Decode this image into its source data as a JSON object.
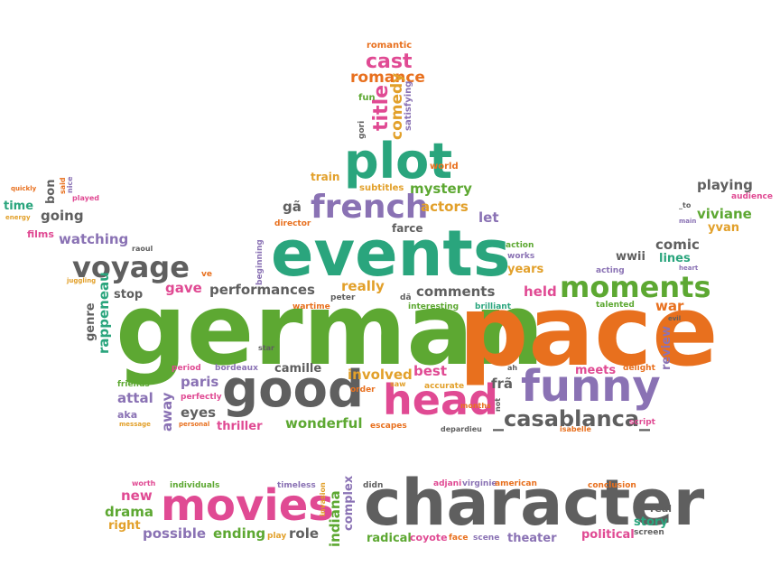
{
  "palette": {
    "green": "#5da832",
    "orange": "#e8701e",
    "gray": "#5f5f5f",
    "purple": "#8a72b4",
    "magenta": "#e04a93",
    "teal": "#2aa57d",
    "gold": "#e2a02a"
  },
  "words": [
    {
      "text": "german",
      "color": "#5da832"
    },
    {
      "text": "pace",
      "color": "#e8701e"
    },
    {
      "text": "events",
      "color": "#2aa57d"
    },
    {
      "text": "character",
      "color": "#5f5f5f"
    },
    {
      "text": "good",
      "color": "#5f5f5f"
    },
    {
      "text": "head",
      "color": "#e04a93"
    },
    {
      "text": "funny",
      "color": "#8a72b4"
    },
    {
      "text": "movies",
      "color": "#e04a93"
    },
    {
      "text": "plot",
      "color": "#2aa57d"
    },
    {
      "text": "french",
      "color": "#8a72b4"
    },
    {
      "text": "moments",
      "color": "#5da832"
    },
    {
      "text": "voyage",
      "color": "#5f5f5f"
    },
    {
      "text": "_casablanca_",
      "color": "#5f5f5f"
    },
    {
      "text": "cast",
      "color": "#e04a93"
    },
    {
      "text": "romance",
      "color": "#e8701e"
    },
    {
      "text": "title",
      "color": "#e04a93"
    },
    {
      "text": "comedy",
      "color": "#e2a02a"
    },
    {
      "text": "satisfying",
      "color": "#8a72b4"
    },
    {
      "text": "romantic",
      "color": "#e8701e"
    },
    {
      "text": "fun",
      "color": "#5da832"
    },
    {
      "text": "gori",
      "color": "#5f5f5f"
    },
    {
      "text": "train",
      "color": "#e2a02a"
    },
    {
      "text": "world",
      "color": "#e8701e"
    },
    {
      "text": "subtitles",
      "color": "#e2a02a"
    },
    {
      "text": "mystery",
      "color": "#5da832"
    },
    {
      "text": "gã",
      "color": "#5f5f5f"
    },
    {
      "text": "actors",
      "color": "#e2a02a"
    },
    {
      "text": "let",
      "color": "#8a72b4"
    },
    {
      "text": "director",
      "color": "#e8701e"
    },
    {
      "text": "farce",
      "color": "#5f5f5f"
    },
    {
      "text": "beginning",
      "color": "#8a72b4"
    },
    {
      "text": "action",
      "color": "#5da832"
    },
    {
      "text": "works",
      "color": "#8a72b4"
    },
    {
      "text": "years",
      "color": "#e2a02a"
    },
    {
      "text": "performances",
      "color": "#5f5f5f"
    },
    {
      "text": "really",
      "color": "#e2a02a"
    },
    {
      "text": "comments",
      "color": "#5f5f5f"
    },
    {
      "text": "held",
      "color": "#e04a93"
    },
    {
      "text": "peter",
      "color": "#5f5f5f"
    },
    {
      "text": "wartime",
      "color": "#e8701e"
    },
    {
      "text": "dã",
      "color": "#5f5f5f"
    },
    {
      "text": "interesting",
      "color": "#5da832"
    },
    {
      "text": "brilliant",
      "color": "#2aa57d"
    },
    {
      "text": "gave",
      "color": "#e04a93"
    },
    {
      "text": "stop",
      "color": "#5f5f5f"
    },
    {
      "text": "ve",
      "color": "#e8701e"
    },
    {
      "text": "raoul",
      "color": "#5f5f5f"
    },
    {
      "text": "watching",
      "color": "#8a72b4"
    },
    {
      "text": "films",
      "color": "#e04a93"
    },
    {
      "text": "going",
      "color": "#5f5f5f"
    },
    {
      "text": "time",
      "color": "#2aa57d"
    },
    {
      "text": "energy",
      "color": "#e2a02a"
    },
    {
      "text": "quickly",
      "color": "#e8701e"
    },
    {
      "text": "bon",
      "color": "#5f5f5f"
    },
    {
      "text": "said",
      "color": "#e8701e"
    },
    {
      "text": "nice",
      "color": "#8a72b4"
    },
    {
      "text": "played",
      "color": "#e04a93"
    },
    {
      "text": "juggling",
      "color": "#e2a02a"
    },
    {
      "text": "rappeneau",
      "color": "#2aa57d"
    },
    {
      "text": "genre",
      "color": "#5f5f5f"
    },
    {
      "text": "playing",
      "color": "#5f5f5f"
    },
    {
      "text": "audience",
      "color": "#e04a93"
    },
    {
      "text": "_to",
      "color": "#5f5f5f"
    },
    {
      "text": "viviane",
      "color": "#5da832"
    },
    {
      "text": "yvan",
      "color": "#e2a02a"
    },
    {
      "text": "main",
      "color": "#8a72b4"
    },
    {
      "text": "comic",
      "color": "#5f5f5f"
    },
    {
      "text": "lines",
      "color": "#2aa57d"
    },
    {
      "text": "wwii",
      "color": "#5f5f5f"
    },
    {
      "text": "heart",
      "color": "#8a72b4"
    },
    {
      "text": "acting",
      "color": "#8a72b4"
    },
    {
      "text": "talented",
      "color": "#5da832"
    },
    {
      "text": "war",
      "color": "#e8701e"
    },
    {
      "text": "evil",
      "color": "#5f5f5f"
    },
    {
      "text": "review",
      "color": "#8a72b4"
    },
    {
      "text": "delight",
      "color": "#e8701e"
    },
    {
      "text": "meets",
      "color": "#e04a93"
    },
    {
      "text": "star",
      "color": "#5f5f5f"
    },
    {
      "text": "period",
      "color": "#e04a93"
    },
    {
      "text": "bordeaux",
      "color": "#8a72b4"
    },
    {
      "text": "camille",
      "color": "#5f5f5f"
    },
    {
      "text": "involved",
      "color": "#e2a02a"
    },
    {
      "text": "best",
      "color": "#e04a93"
    },
    {
      "text": "seen",
      "color": "#e8701e"
    },
    {
      "text": "ah",
      "color": "#5f5f5f"
    },
    {
      "text": "frã",
      "color": "#5f5f5f"
    },
    {
      "text": "paris",
      "color": "#8a72b4"
    },
    {
      "text": "perfectly",
      "color": "#e04a93"
    },
    {
      "text": "friends",
      "color": "#5da832"
    },
    {
      "text": "attal",
      "color": "#8a72b4"
    },
    {
      "text": "aka",
      "color": "#8a72b4"
    },
    {
      "text": "message",
      "color": "#e2a02a"
    },
    {
      "text": "away",
      "color": "#8a72b4"
    },
    {
      "text": "eyes",
      "color": "#5f5f5f"
    },
    {
      "text": "personal",
      "color": "#e8701e"
    },
    {
      "text": "thriller",
      "color": "#e04a93"
    },
    {
      "text": "wonderful",
      "color": "#5da832"
    },
    {
      "text": "order",
      "color": "#e8701e"
    },
    {
      "text": "escapes",
      "color": "#e8701e"
    },
    {
      "text": "saw",
      "color": "#e2a02a"
    },
    {
      "text": "accurate",
      "color": "#e2a02a"
    },
    {
      "text": "months",
      "color": "#e8701e"
    },
    {
      "text": "depardieu",
      "color": "#5f5f5f"
    },
    {
      "text": "not",
      "color": "#5f5f5f"
    },
    {
      "text": "isabelle",
      "color": "#e8701e"
    },
    {
      "text": "script",
      "color": "#e04a93"
    },
    {
      "text": "worth",
      "color": "#e04a93"
    },
    {
      "text": "individuals",
      "color": "#5da832"
    },
    {
      "text": "timeless",
      "color": "#8a72b4"
    },
    {
      "text": "invasion",
      "color": "#e2a02a"
    },
    {
      "text": "didn",
      "color": "#5f5f5f"
    },
    {
      "text": "complex",
      "color": "#8a72b4"
    },
    {
      "text": "adjani",
      "color": "#e04a93"
    },
    {
      "text": "virginie",
      "color": "#8a72b4"
    },
    {
      "text": "american",
      "color": "#e8701e"
    },
    {
      "text": "conclusion",
      "color": "#e8701e"
    },
    {
      "text": "new",
      "color": "#e04a93"
    },
    {
      "text": "drama",
      "color": "#5da832"
    },
    {
      "text": "right",
      "color": "#e2a02a"
    },
    {
      "text": "possible",
      "color": "#8a72b4"
    },
    {
      "text": "ending",
      "color": "#5da832"
    },
    {
      "text": "play",
      "color": "#e2a02a"
    },
    {
      "text": "role",
      "color": "#5f5f5f"
    },
    {
      "text": "indiana",
      "color": "#5da832"
    },
    {
      "text": "radical",
      "color": "#5da832"
    },
    {
      "text": "coyote",
      "color": "#e04a93"
    },
    {
      "text": "face",
      "color": "#e8701e"
    },
    {
      "text": "scene",
      "color": "#8a72b4"
    },
    {
      "text": "theater",
      "color": "#8a72b4"
    },
    {
      "text": "political",
      "color": "#e04a93"
    },
    {
      "text": "real",
      "color": "#5f5f5f"
    },
    {
      "text": "story",
      "color": "#2aa57d"
    },
    {
      "text": "screen",
      "color": "#5f5f5f"
    }
  ]
}
